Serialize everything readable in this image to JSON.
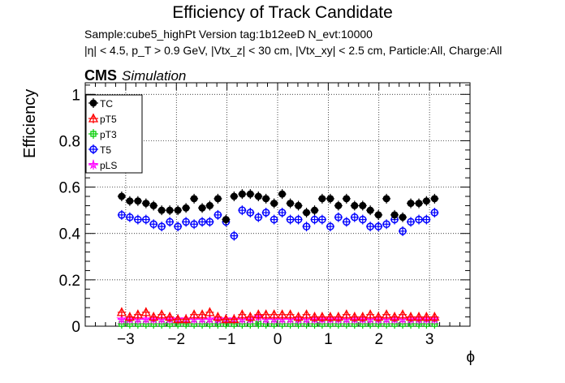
{
  "header": {
    "title": "Efficiency of Track Candidate",
    "subtitle_line1": "Sample:cube5_highPt   Version tag:1b12eeD  N_evt:10000",
    "subtitle_line2": "|η| < 4.5, p_T > 0.9 GeV, |Vtx_z| < 30 cm, |Vtx_xy| < 2.5 cm, Particle:All, Charge:All",
    "cms": "CMS",
    "simulation": "Simulation"
  },
  "chart_data": {
    "type": "scatter",
    "xlabel": "ϕ",
    "ylabel": "Efficiency",
    "xlim": [
      -3.8,
      3.8
    ],
    "ylim": [
      0,
      1.05
    ],
    "xticks": [
      -3,
      -2,
      -1,
      0,
      1,
      2,
      3
    ],
    "xtick_labels": [
      "−3",
      "−2",
      "−1",
      "0",
      "1",
      "2",
      "3"
    ],
    "yticks": [
      0,
      0.2,
      0.4,
      0.6,
      0.8,
      1
    ],
    "ytick_labels": [
      "0",
      "0.2",
      "0.4",
      "0.6",
      "0.8",
      "1"
    ],
    "grid": true,
    "legend_placement": "top-left",
    "x": [
      -3.08,
      -2.92,
      -2.76,
      -2.6,
      -2.45,
      -2.29,
      -2.13,
      -1.97,
      -1.81,
      -1.65,
      -1.49,
      -1.34,
      -1.18,
      -1.02,
      -0.86,
      -0.7,
      -0.54,
      -0.38,
      -0.23,
      -0.07,
      0.09,
      0.25,
      0.41,
      0.57,
      0.73,
      0.88,
      1.04,
      1.2,
      1.36,
      1.52,
      1.68,
      1.83,
      1.99,
      2.15,
      2.31,
      2.47,
      2.63,
      2.79,
      2.94,
      3.1
    ],
    "series": [
      {
        "name": "TC",
        "color": "#000000",
        "marker": "filled-circle",
        "values": [
          0.56,
          0.54,
          0.54,
          0.53,
          0.52,
          0.5,
          0.5,
          0.5,
          0.51,
          0.55,
          0.51,
          0.52,
          0.55,
          0.46,
          0.56,
          0.57,
          0.57,
          0.56,
          0.55,
          0.53,
          0.57,
          0.53,
          0.52,
          0.49,
          0.5,
          0.55,
          0.55,
          0.52,
          0.55,
          0.52,
          0.52,
          0.5,
          0.48,
          0.55,
          0.48,
          0.47,
          0.53,
          0.53,
          0.54,
          0.55
        ]
      },
      {
        "name": "pT5",
        "color": "#ff0000",
        "marker": "open-triangle",
        "values": [
          0.06,
          0.04,
          0.05,
          0.06,
          0.04,
          0.05,
          0.04,
          0.03,
          0.03,
          0.05,
          0.05,
          0.06,
          0.04,
          0.03,
          0.03,
          0.05,
          0.04,
          0.05,
          0.05,
          0.05,
          0.05,
          0.05,
          0.04,
          0.05,
          0.04,
          0.04,
          0.04,
          0.04,
          0.05,
          0.04,
          0.04,
          0.05,
          0.04,
          0.05,
          0.04,
          0.05,
          0.04,
          0.04,
          0.04,
          0.04
        ]
      },
      {
        "name": "pT3",
        "color": "#00cc00",
        "marker": "open-square",
        "values": [
          0.01,
          0.01,
          0.01,
          0.01,
          0.01,
          0.01,
          0.01,
          0.01,
          0.01,
          0.01,
          0.01,
          0.01,
          0.01,
          0.01,
          0.01,
          0.01,
          0.01,
          0.01,
          0.01,
          0.01,
          0.01,
          0.01,
          0.01,
          0.01,
          0.01,
          0.01,
          0.01,
          0.01,
          0.01,
          0.01,
          0.01,
          0.01,
          0.01,
          0.01,
          0.01,
          0.01,
          0.01,
          0.01,
          0.01,
          0.01
        ]
      },
      {
        "name": "T5",
        "color": "#0000ff",
        "marker": "open-circle",
        "values": [
          0.48,
          0.47,
          0.46,
          0.46,
          0.44,
          0.43,
          0.45,
          0.43,
          0.45,
          0.44,
          0.45,
          0.45,
          0.48,
          0.45,
          0.39,
          0.5,
          0.49,
          0.47,
          0.49,
          0.46,
          0.49,
          0.46,
          0.46,
          0.43,
          0.46,
          0.46,
          0.43,
          0.47,
          0.45,
          0.47,
          0.46,
          0.43,
          0.43,
          0.44,
          0.46,
          0.41,
          0.45,
          0.46,
          0.46,
          0.49
        ]
      },
      {
        "name": "pLS",
        "color": "#ff00ff",
        "marker": "open-star",
        "values": [
          0.03,
          0.03,
          0.03,
          0.03,
          0.03,
          0.03,
          0.03,
          0.03,
          0.03,
          0.03,
          0.03,
          0.03,
          0.03,
          0.03,
          0.03,
          0.03,
          0.03,
          0.04,
          0.03,
          0.03,
          0.03,
          0.03,
          0.03,
          0.03,
          0.03,
          0.03,
          0.03,
          0.03,
          0.03,
          0.03,
          0.03,
          0.03,
          0.03,
          0.03,
          0.03,
          0.03,
          0.03,
          0.03,
          0.03,
          0.03
        ]
      }
    ]
  }
}
